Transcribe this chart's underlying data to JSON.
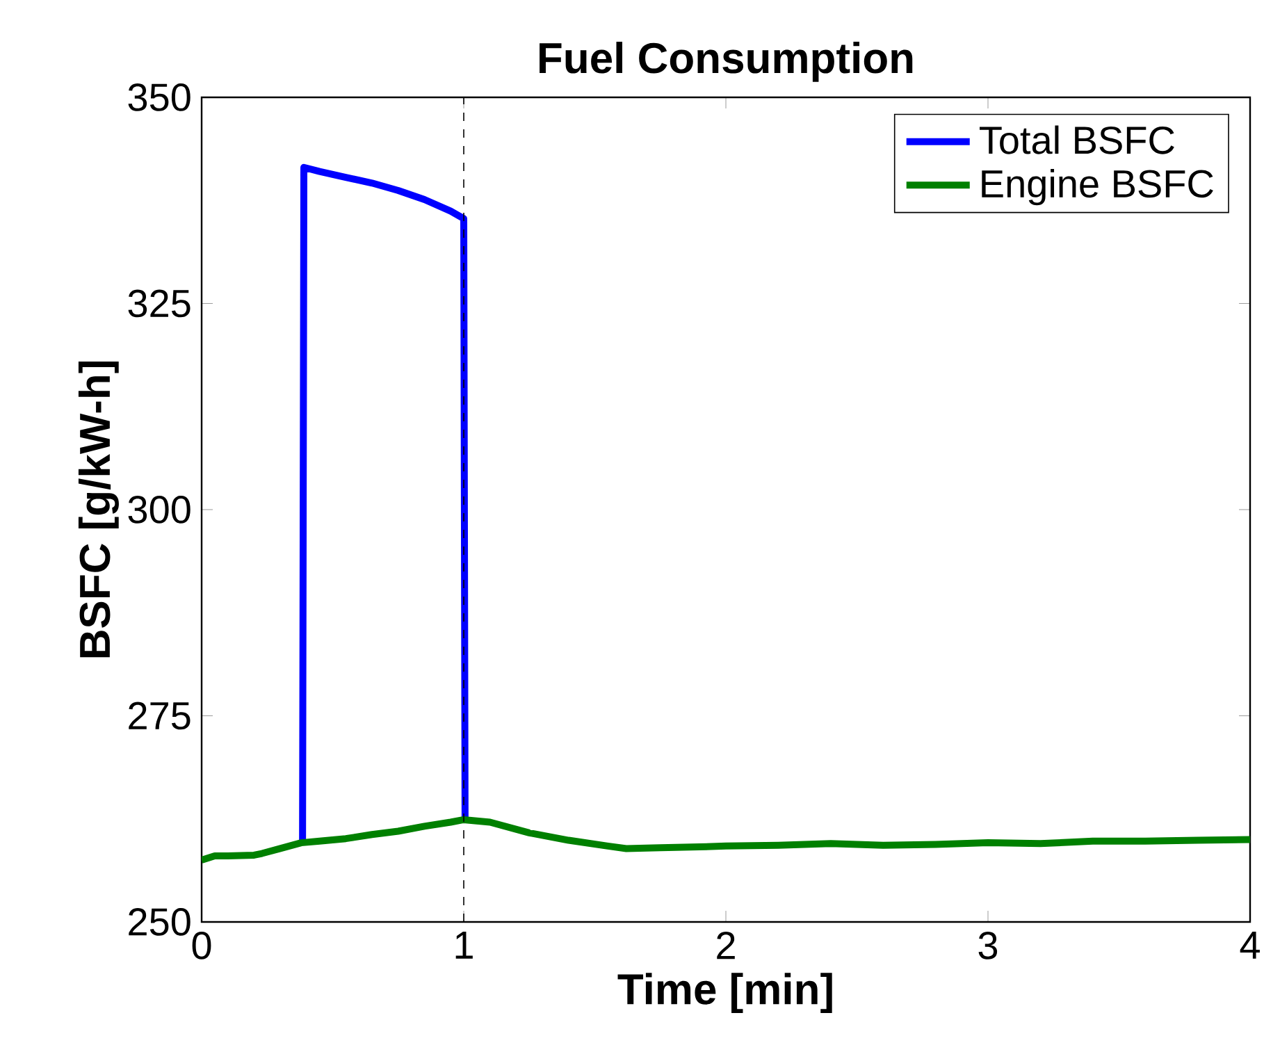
{
  "chart_data": {
    "type": "line",
    "title": "Fuel Consumption",
    "xlabel": "Time [min]",
    "ylabel": "BSFC  [g/kW-h]",
    "xlim": [
      0,
      4
    ],
    "ylim": [
      250,
      350
    ],
    "xticks": [
      0,
      1,
      2,
      3,
      4
    ],
    "yticks": [
      250,
      275,
      300,
      325,
      350
    ],
    "legend": "top right",
    "grid": false,
    "marker": "none",
    "line_style": "solid",
    "ref_lines": [
      {
        "axis": "x",
        "value": 1,
        "color": "#000000",
        "line_style": "dashed"
      }
    ],
    "series": [
      {
        "name": "Total BSFC",
        "color": "#0000ff",
        "x": [
          0.385,
          0.39,
          0.45,
          0.55,
          0.65,
          0.75,
          0.85,
          0.95,
          1.0,
          1.005
        ],
        "values": [
          259.7,
          341.5,
          341.0,
          340.3,
          339.6,
          338.7,
          337.6,
          336.2,
          335.3,
          262.4
        ]
      },
      {
        "name": "Engine BSFC",
        "color": "#008000",
        "x": [
          0,
          0.05,
          0.1,
          0.2,
          0.23,
          0.3,
          0.38,
          0.45,
          0.55,
          0.65,
          0.75,
          0.85,
          0.95,
          1.0,
          1.1,
          1.25,
          1.4,
          1.55,
          1.62,
          1.75,
          1.9,
          2.0,
          2.2,
          2.4,
          2.6,
          2.8,
          3.0,
          3.2,
          3.4,
          3.6,
          3.8,
          4.0
        ],
        "values": [
          257.5,
          258.0,
          258.0,
          258.1,
          258.3,
          258.9,
          259.6,
          259.8,
          260.1,
          260.6,
          261.0,
          261.6,
          262.1,
          262.4,
          262.1,
          260.8,
          259.9,
          259.2,
          258.9,
          259.0,
          259.1,
          259.2,
          259.3,
          259.5,
          259.3,
          259.4,
          259.6,
          259.5,
          259.8,
          259.8,
          259.9,
          260.0
        ]
      }
    ]
  }
}
